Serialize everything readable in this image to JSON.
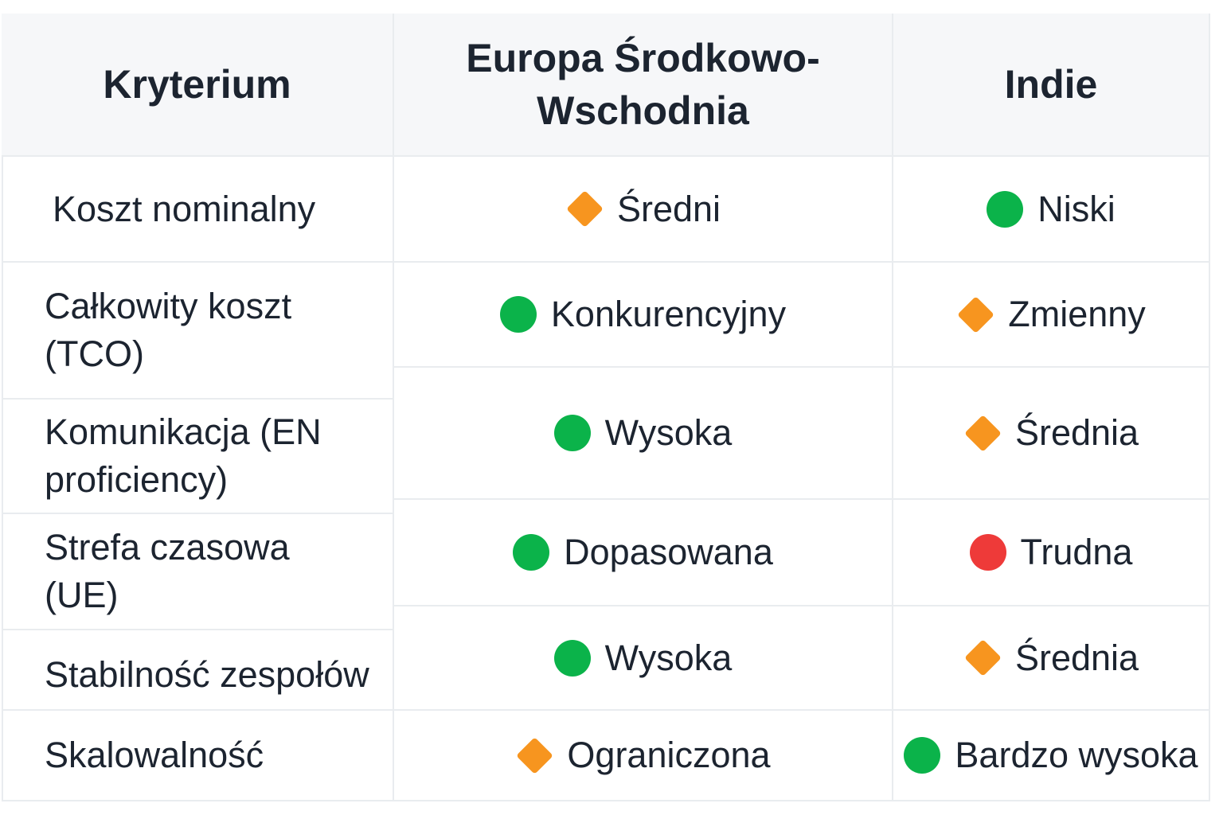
{
  "table": {
    "header": [
      "Kryterium",
      "Europa Środkowo-Wschodnia",
      "Indie"
    ],
    "rows": [
      [
        "Koszt nominalny",
        "Średni",
        "Niski"
      ],
      [
        "Całkowity koszt (TCO)",
        "Konkurencyjny",
        "Zmienny"
      ],
      [
        "Komunikacja (EN proficiency)",
        "Wysoka",
        "Średnia"
      ],
      [
        "Strefa czasowa (UE)",
        "Dopasowana",
        "Trudna"
      ],
      [
        "Stabilność zespołów",
        "Wysoka",
        "Średnia"
      ],
      [
        "Skalowalność",
        "Ograniczona",
        "Bardzo wysoka"
      ]
    ]
  }
}
